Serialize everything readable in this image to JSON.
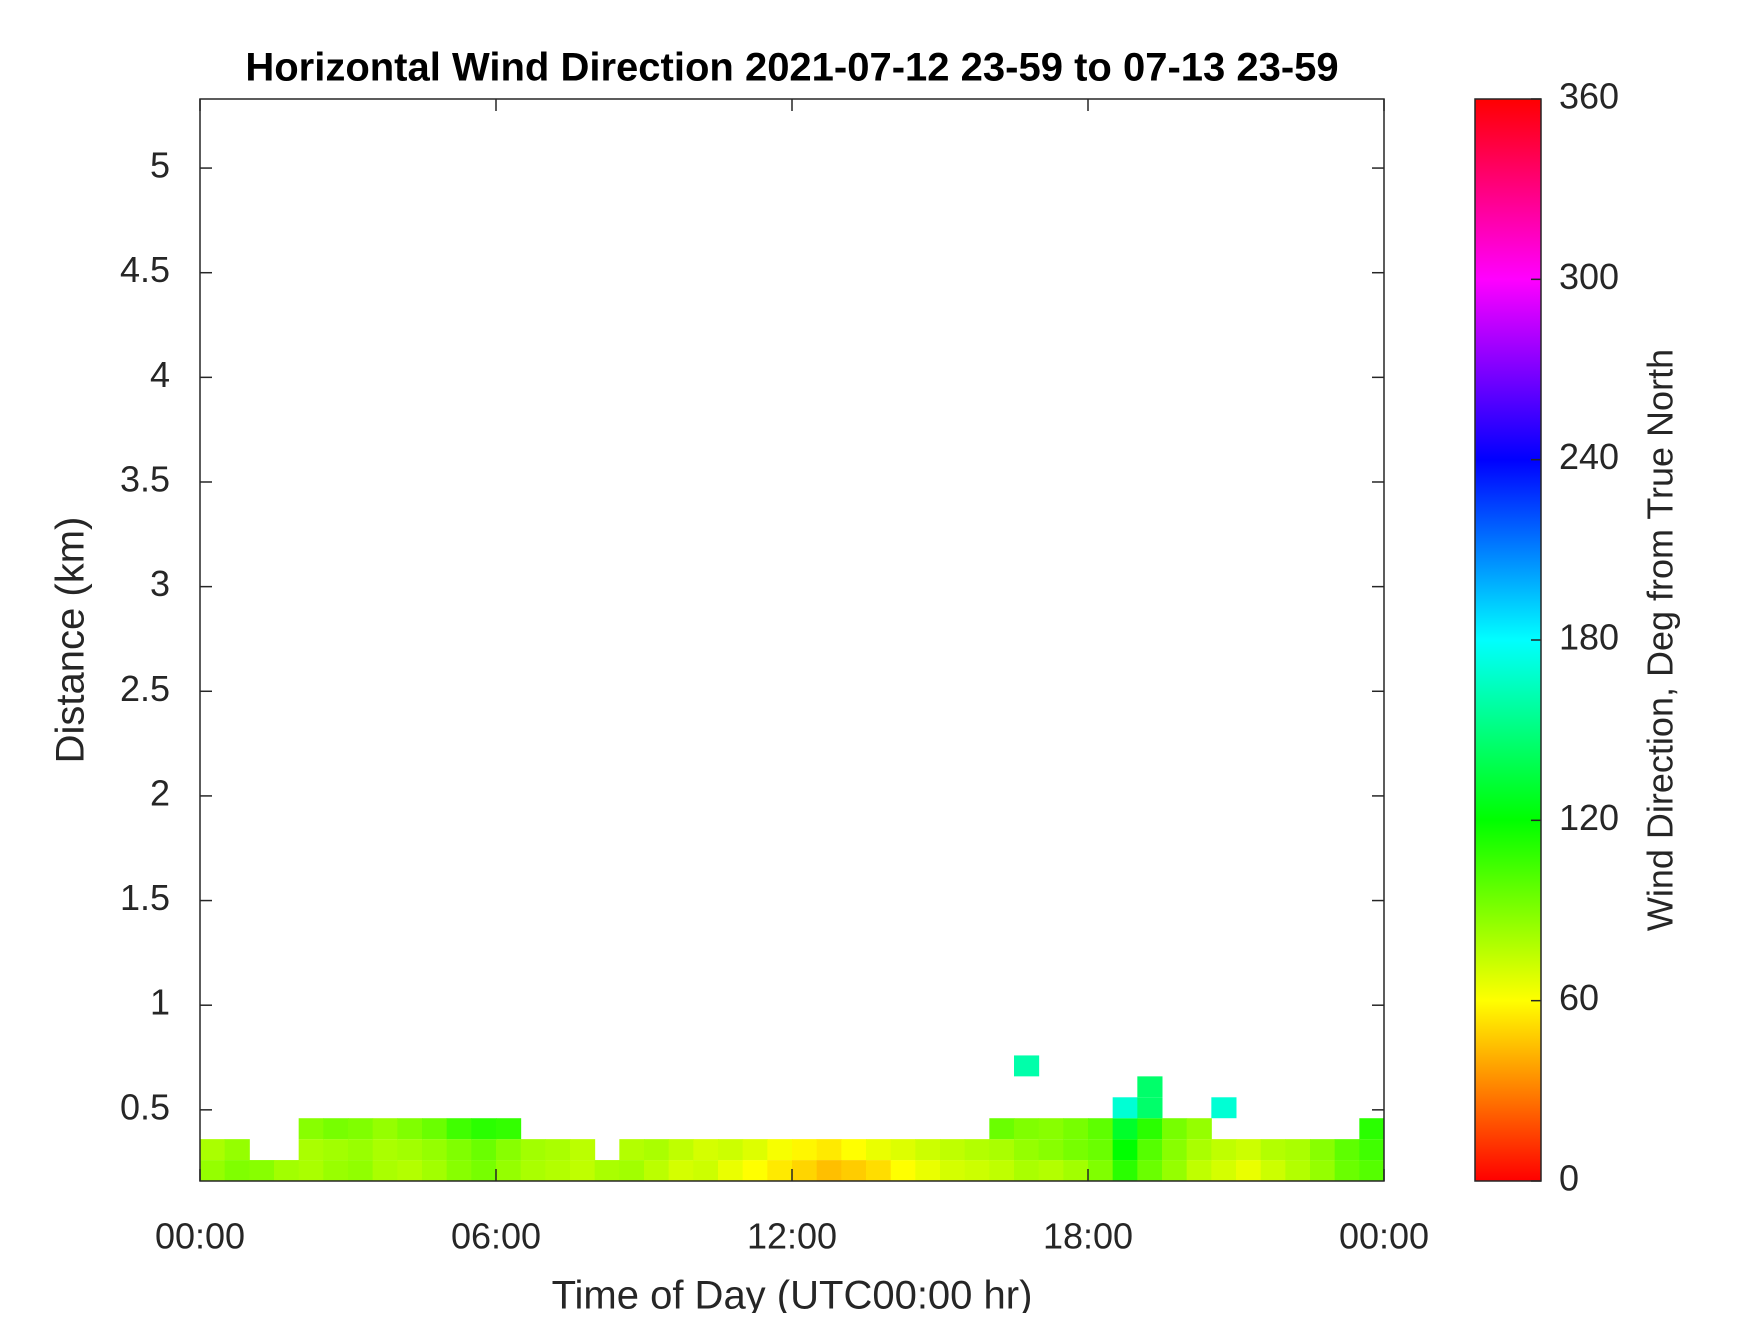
{
  "chart_data": {
    "type": "heatmap",
    "title": "Horizontal Wind Direction 2021-07-12 23-59 to 07-13 23-59",
    "x_label": "Time of Day (UTC00:00 hr)",
    "y_label": "Distance (km)",
    "colorbar_label": "Wind Direction, Deg from True North",
    "xlim": [
      0,
      24
    ],
    "xticks": [
      {
        "value": 0,
        "label": "00:00"
      },
      {
        "value": 6,
        "label": "06:00"
      },
      {
        "value": 12,
        "label": "12:00"
      },
      {
        "value": 18,
        "label": "18:00"
      },
      {
        "value": 24,
        "label": "00:00"
      }
    ],
    "ylim": [
      0.16,
      5.33
    ],
    "yticks": [
      0.5,
      1,
      1.5,
      2,
      2.5,
      3,
      3.5,
      4,
      4.5,
      5
    ],
    "clim": [
      0,
      360
    ],
    "cticks": [
      0,
      60,
      120,
      180,
      240,
      300,
      360
    ],
    "colormap": [
      "#ff0000",
      "#ffff00",
      "#00ff00",
      "#00ffff",
      "#0000ff",
      "#ff00ff",
      "#ff0000"
    ],
    "x_edges": [
      0,
      0.5,
      1,
      1.5,
      2,
      2.5,
      3,
      3.5,
      4,
      4.5,
      5,
      5.5,
      6,
      6.5,
      7,
      7.5,
      8,
      8.5,
      9,
      9.5,
      10,
      10.5,
      11,
      11.5,
      12,
      12.5,
      13,
      13.5,
      14,
      14.5,
      15,
      15.5,
      16,
      16.5,
      17,
      17.5,
      18,
      18.5,
      19,
      19.5,
      20,
      20.5,
      21,
      21.5,
      22,
      22.5,
      23,
      23.5,
      24
    ],
    "y_edges": [
      0.16,
      0.26,
      0.36,
      0.46,
      0.56,
      0.66,
      0.76
    ],
    "z": [
      [
        85,
        90,
        88,
        82,
        80,
        84,
        86,
        80,
        78,
        82,
        88,
        92,
        85,
        80,
        78,
        75,
        80,
        82,
        76,
        70,
        72,
        65,
        60,
        55,
        50,
        45,
        48,
        52,
        60,
        65,
        70,
        72,
        75,
        80,
        78,
        82,
        90,
        110,
        95,
        85,
        75,
        70,
        65,
        72,
        78,
        85,
        95,
        100
      ],
      [
        80,
        85,
        null,
        null,
        80,
        82,
        84,
        80,
        82,
        85,
        90,
        95,
        88,
        82,
        80,
        76,
        null,
        78,
        80,
        75,
        70,
        72,
        68,
        62,
        58,
        55,
        60,
        65,
        68,
        72,
        75,
        78,
        80,
        85,
        88,
        92,
        95,
        120,
        100,
        88,
        80,
        75,
        72,
        78,
        80,
        88,
        98,
        105
      ],
      [
        null,
        null,
        null,
        null,
        88,
        92,
        90,
        85,
        90,
        95,
        105,
        110,
        108,
        null,
        null,
        null,
        null,
        null,
        null,
        null,
        null,
        null,
        null,
        null,
        null,
        null,
        null,
        null,
        null,
        null,
        null,
        null,
        95,
        90,
        88,
        92,
        98,
        130,
        110,
        92,
        85,
        null,
        null,
        null,
        null,
        null,
        null,
        110
      ],
      [
        null,
        null,
        null,
        null,
        null,
        null,
        null,
        null,
        null,
        null,
        null,
        null,
        null,
        null,
        null,
        null,
        null,
        null,
        null,
        null,
        null,
        null,
        null,
        null,
        null,
        null,
        null,
        null,
        null,
        null,
        null,
        null,
        null,
        null,
        null,
        null,
        null,
        170,
        145,
        null,
        null,
        170,
        null,
        null,
        null,
        null,
        null,
        null
      ],
      [
        null,
        null,
        null,
        null,
        null,
        null,
        null,
        null,
        null,
        null,
        null,
        null,
        null,
        null,
        null,
        null,
        null,
        null,
        null,
        null,
        null,
        null,
        null,
        null,
        null,
        null,
        null,
        null,
        null,
        null,
        null,
        null,
        null,
        null,
        null,
        null,
        null,
        null,
        145,
        null,
        null,
        null,
        null,
        null,
        null,
        null,
        null,
        null
      ],
      [
        null,
        null,
        null,
        null,
        null,
        null,
        null,
        null,
        null,
        null,
        null,
        null,
        null,
        null,
        null,
        null,
        null,
        null,
        null,
        null,
        null,
        null,
        null,
        null,
        null,
        null,
        null,
        null,
        null,
        null,
        null,
        null,
        null,
        160,
        null,
        null,
        null,
        null,
        null,
        null,
        null,
        null,
        null,
        null,
        null,
        null,
        null,
        null
      ]
    ]
  }
}
